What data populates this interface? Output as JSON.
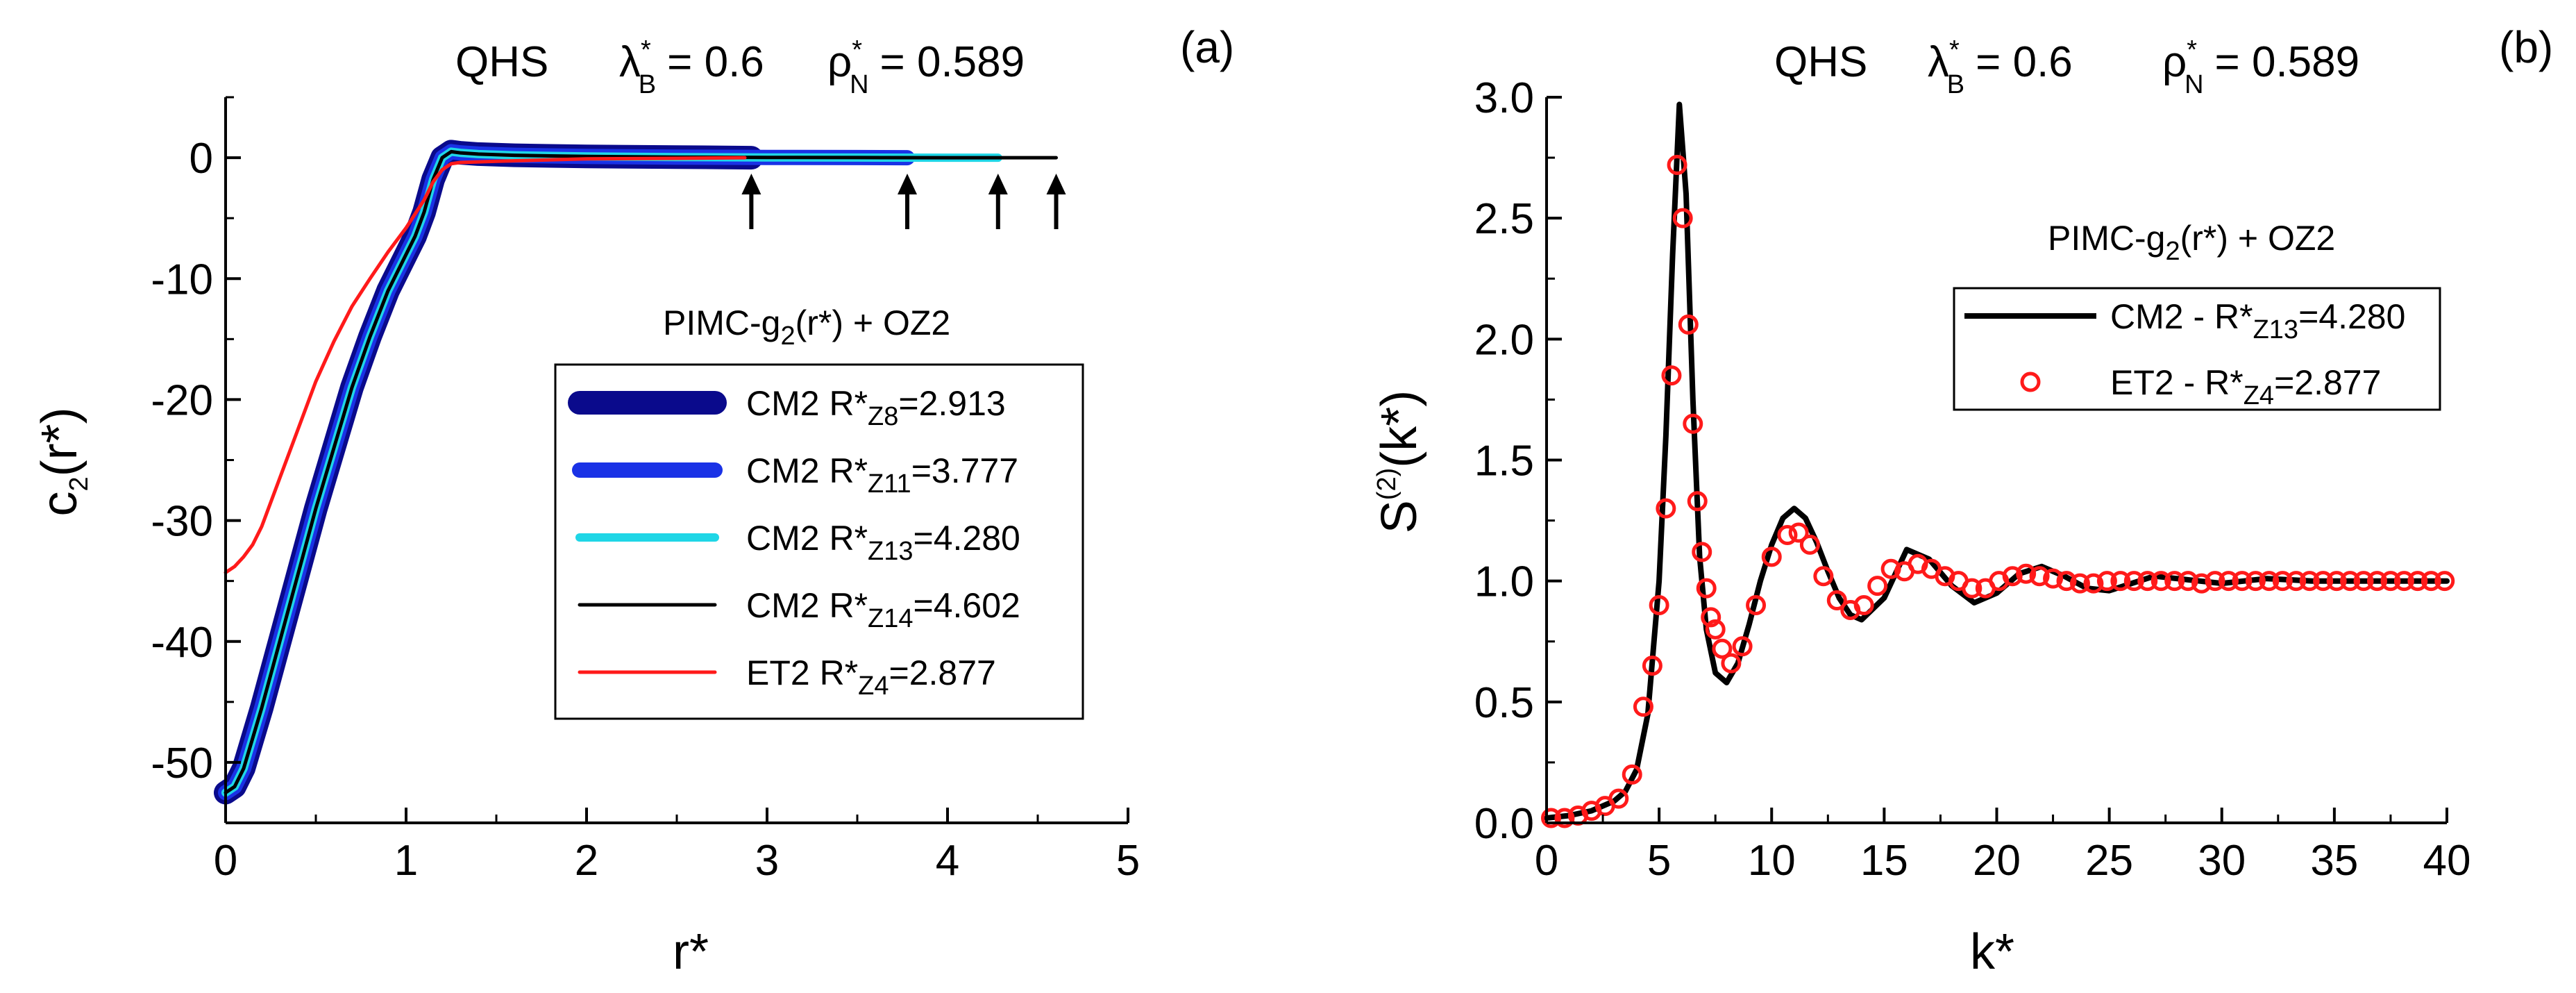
{
  "chart_data": [
    {
      "type": "line",
      "panel_label": "(a)",
      "header": {
        "system": "QHS",
        "lambda_symbol": "λ",
        "lambda_sup": "*",
        "lambda_sub": "B",
        "lambda_value": "= 0.6",
        "rho_symbol": "ρ",
        "rho_sup": "*",
        "rho_sub": "N",
        "rho_value": "= 0.589"
      },
      "xlabel": "r*",
      "ylabel": {
        "main": "c",
        "sub": "2",
        "rest": "(r*)"
      },
      "xlim": [
        0,
        5
      ],
      "ylim": [
        -55,
        5
      ],
      "x_ticks": [
        0,
        1,
        2,
        3,
        4,
        5
      ],
      "x_tick_labels": [
        "0",
        "1",
        "2",
        "3",
        "4",
        "5"
      ],
      "y_ticks": [
        -50,
        -40,
        -30,
        -20,
        -10,
        0
      ],
      "y_tick_labels": [
        "-50",
        "-40",
        "-30",
        "-20",
        "-10",
        "0"
      ],
      "annotation": {
        "pre": "PIMC-g",
        "sub": "2",
        "post": "(r*) + OZ2"
      },
      "cutoff_arrows_x": [
        2.913,
        3.777,
        4.28,
        4.602
      ],
      "series": [
        {
          "name": "CM2 R*Z8=2.913",
          "legend": {
            "label": "CM2 R*",
            "sub": "Z8",
            "value": "=2.913"
          },
          "color": "#0a0a8c",
          "r_max": 2.913,
          "x": [
            0,
            0.05,
            0.1,
            0.2,
            0.3,
            0.4,
            0.5,
            0.6,
            0.7,
            0.8,
            0.9,
            1.0,
            1.05,
            1.1,
            1.15,
            1.2,
            1.25,
            1.3,
            1.4,
            1.6,
            1.8,
            2.0,
            2.5,
            2.913
          ],
          "y": [
            -52.5,
            -52,
            -50.5,
            -45.5,
            -40,
            -34.5,
            -29,
            -24,
            -19,
            -14.8,
            -11,
            -8,
            -6.5,
            -4.5,
            -1.8,
            0,
            0.5,
            0.4,
            0.3,
            0.2,
            0.15,
            0.1,
            0.05,
            0
          ]
        },
        {
          "name": "CM2 R*Z11=3.777",
          "legend": {
            "label": "CM2 R*",
            "sub": "Z11",
            "value": "=3.777"
          },
          "color": "#1a32e6",
          "r_max": 3.777,
          "x": [
            0,
            0.05,
            0.1,
            0.2,
            0.3,
            0.4,
            0.5,
            0.6,
            0.7,
            0.8,
            0.9,
            1.0,
            1.05,
            1.1,
            1.15,
            1.2,
            1.25,
            1.3,
            1.4,
            1.6,
            1.8,
            2.0,
            2.5,
            3.0,
            3.5,
            3.777
          ],
          "y": [
            -52.5,
            -52,
            -50.5,
            -45.5,
            -40,
            -34.5,
            -29,
            -24,
            -19,
            -14.8,
            -11,
            -8,
            -6.5,
            -4.5,
            -1.8,
            0,
            0.5,
            0.4,
            0.3,
            0.2,
            0.15,
            0.1,
            0.05,
            0.02,
            0.01,
            0
          ]
        },
        {
          "name": "CM2 R*Z13=4.280",
          "legend": {
            "label": "CM2 R*",
            "sub": "Z13",
            "value": "=4.280"
          },
          "color": "#1fd6e6",
          "r_max": 4.28,
          "x": [
            0,
            0.05,
            0.1,
            0.2,
            0.3,
            0.4,
            0.5,
            0.6,
            0.7,
            0.8,
            0.9,
            1.0,
            1.05,
            1.1,
            1.15,
            1.2,
            1.25,
            1.3,
            1.4,
            1.6,
            1.8,
            2.0,
            2.5,
            3.0,
            3.5,
            4.0,
            4.28
          ],
          "y": [
            -52.5,
            -52,
            -50.5,
            -45.5,
            -40,
            -34.5,
            -29,
            -24,
            -19,
            -14.8,
            -11,
            -8,
            -6.5,
            -4.5,
            -1.8,
            0,
            0.5,
            0.4,
            0.3,
            0.2,
            0.15,
            0.1,
            0.05,
            0.02,
            0.01,
            0,
            0
          ]
        },
        {
          "name": "CM2 R*Z14=4.602",
          "legend": {
            "label": "CM2 R*",
            "sub": "Z14",
            "value": "=4.602"
          },
          "color": "#000000",
          "r_max": 4.602,
          "x": [
            0,
            0.05,
            0.1,
            0.2,
            0.3,
            0.4,
            0.5,
            0.6,
            0.7,
            0.8,
            0.9,
            1.0,
            1.05,
            1.1,
            1.15,
            1.2,
            1.25,
            1.3,
            1.4,
            1.6,
            1.8,
            2.0,
            2.5,
            3.0,
            3.5,
            4.0,
            4.602
          ],
          "y": [
            -52.5,
            -52,
            -50.5,
            -45.5,
            -40,
            -34.5,
            -29,
            -24,
            -19,
            -14.8,
            -11,
            -8,
            -6.5,
            -4.5,
            -1.8,
            0,
            0.5,
            0.4,
            0.3,
            0.2,
            0.15,
            0.1,
            0.05,
            0.02,
            0.01,
            0,
            0
          ]
        },
        {
          "name": "ET2 R*Z4=2.877",
          "legend": {
            "label": "ET2  R*",
            "sub": "Z4",
            "value": "=2.877"
          },
          "color": "#ff1a1a",
          "r_max": 2.877,
          "x": [
            0,
            0.05,
            0.1,
            0.15,
            0.2,
            0.3,
            0.4,
            0.5,
            0.6,
            0.7,
            0.8,
            0.9,
            1.0,
            1.1,
            1.15,
            1.2,
            1.25,
            1.3,
            1.5,
            2.0,
            2.5,
            2.877
          ],
          "y": [
            -34.3,
            -33.8,
            -33,
            -32,
            -30.5,
            -26.5,
            -22.5,
            -18.5,
            -15.2,
            -12.3,
            -10,
            -7.8,
            -5.8,
            -3.5,
            -2,
            -1,
            -0.5,
            -0.4,
            -0.3,
            -0.1,
            -0.05,
            0
          ]
        }
      ]
    },
    {
      "type": "line",
      "panel_label": "(b)",
      "header": {
        "system": "QHS",
        "lambda_symbol": "λ",
        "lambda_sup": "*",
        "lambda_sub": "B",
        "lambda_value": "= 0.6",
        "rho_symbol": "ρ",
        "rho_sup": "*",
        "rho_sub": "N",
        "rho_value": "= 0.589"
      },
      "xlabel": "k*",
      "ylabel": {
        "main": "S",
        "sup": "(2)",
        "rest": "(k*)"
      },
      "xlim": [
        0,
        40
      ],
      "ylim": [
        0,
        3.0
      ],
      "x_ticks": [
        0,
        5,
        10,
        15,
        20,
        25,
        30,
        35,
        40
      ],
      "x_tick_labels": [
        "0",
        "5",
        "10",
        "15",
        "20",
        "25",
        "30",
        "35",
        "40"
      ],
      "y_ticks": [
        0,
        0.5,
        1.0,
        1.5,
        2.0,
        2.5,
        3.0
      ],
      "y_tick_labels": [
        "0.0",
        "0.5",
        "1.0",
        "1.5",
        "2.0",
        "2.5",
        "3.0"
      ],
      "annotation": {
        "pre": "PIMC-g",
        "sub": "2",
        "post": "(r*) + OZ2"
      },
      "series": [
        {
          "name": "CM2 - R*Z13=4.280",
          "legend": {
            "label": "CM2 - R*",
            "sub": "Z13",
            "value": "=4.280"
          },
          "color": "#000000",
          "style": "line",
          "x": [
            0,
            1,
            2,
            3,
            3.5,
            4,
            4.5,
            5,
            5.3,
            5.6,
            5.9,
            6.2,
            6.5,
            6.8,
            7.1,
            7.5,
            8,
            8.5,
            9,
            9.5,
            10,
            10.5,
            11,
            11.5,
            12,
            12.5,
            13,
            13.5,
            14,
            15,
            16,
            17,
            18,
            19,
            20,
            21,
            22,
            23,
            24,
            25,
            26,
            27,
            28,
            30,
            32,
            34,
            36,
            38,
            40
          ],
          "y": [
            0.02,
            0.03,
            0.05,
            0.09,
            0.13,
            0.22,
            0.45,
            1.0,
            1.6,
            2.35,
            2.97,
            2.6,
            1.75,
            1.1,
            0.8,
            0.62,
            0.58,
            0.66,
            0.82,
            1.0,
            1.15,
            1.26,
            1.3,
            1.26,
            1.16,
            1.04,
            0.93,
            0.86,
            0.84,
            0.93,
            1.13,
            1.09,
            0.98,
            0.91,
            0.95,
            1.03,
            1.06,
            1.02,
            0.97,
            0.96,
            0.99,
            1.02,
            1.01,
            0.99,
            1.01,
            1.0,
            1.0,
            1.0,
            1.0
          ]
        },
        {
          "name": "ET2 - R*Z4=2.877",
          "legend": {
            "label": "ET2 - R*",
            "sub": "Z4",
            "value": "=2.877"
          },
          "color": "#ff1a1a",
          "style": "markers",
          "x": [
            0.2,
            0.8,
            1.4,
            2.0,
            2.6,
            3.2,
            3.8,
            4.3,
            4.7,
            5.0,
            5.3,
            5.55,
            5.8,
            6.05,
            6.3,
            6.5,
            6.7,
            6.9,
            7.1,
            7.3,
            7.5,
            7.8,
            8.2,
            8.7,
            9.3,
            10.0,
            10.7,
            11.2,
            11.7,
            12.3,
            12.9,
            13.5,
            14.1,
            14.7,
            15.3,
            15.9,
            16.5,
            17.1,
            17.7,
            18.3,
            18.9,
            19.5,
            20.1,
            20.7,
            21.3,
            21.9,
            22.5,
            23.1,
            23.7,
            24.3,
            24.9,
            25.5,
            26.1,
            26.7,
            27.3,
            27.9,
            28.5,
            29.1,
            29.7,
            30.3,
            30.9,
            31.5,
            32.1,
            32.7,
            33.3,
            33.9,
            34.5,
            35.1,
            35.7,
            36.3,
            36.9,
            37.5,
            38.1,
            38.7,
            39.3,
            39.9
          ],
          "y": [
            0.02,
            0.02,
            0.03,
            0.05,
            0.07,
            0.1,
            0.2,
            0.48,
            0.65,
            0.9,
            1.3,
            1.85,
            2.72,
            2.5,
            2.06,
            1.65,
            1.33,
            1.12,
            0.97,
            0.85,
            0.8,
            0.72,
            0.66,
            0.73,
            0.9,
            1.1,
            1.19,
            1.2,
            1.15,
            1.02,
            0.92,
            0.88,
            0.9,
            0.98,
            1.05,
            1.04,
            1.07,
            1.05,
            1.02,
            1.0,
            0.97,
            0.97,
            1.0,
            1.02,
            1.03,
            1.02,
            1.01,
            1.0,
            0.99,
            0.99,
            1.0,
            1.0,
            1.0,
            1.0,
            1.0,
            1.0,
            1.0,
            0.99,
            1.0,
            1.0,
            1.0,
            1.0,
            1.0,
            1.0,
            1.0,
            1.0,
            1.0,
            1.0,
            1.0,
            1.0,
            1.0,
            1.0,
            1.0,
            1.0,
            1.0,
            1.0
          ]
        }
      ]
    }
  ]
}
